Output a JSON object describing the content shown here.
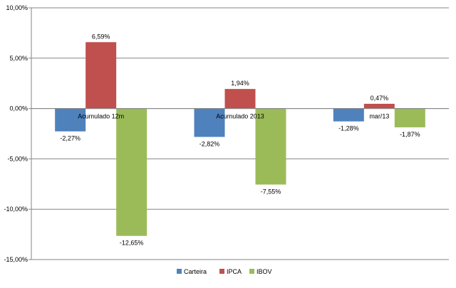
{
  "chart_data": {
    "type": "bar",
    "categories": [
      "Acumulado 12m",
      "Acumulado 2013",
      "mar/13"
    ],
    "series": [
      {
        "name": "Carteira",
        "values": [
          -2.27,
          -2.82,
          -1.28
        ],
        "labels": [
          "-2,27%",
          "-2,82%",
          "-1,28%"
        ],
        "color": "#4f81bd"
      },
      {
        "name": "IPCA",
        "values": [
          6.59,
          1.94,
          0.47
        ],
        "labels": [
          "6,59%",
          "1,94%",
          "0,47%"
        ],
        "color": "#c0504d"
      },
      {
        "name": "IBOV",
        "values": [
          -12.65,
          -7.55,
          -1.87
        ],
        "labels": [
          "-12,65%",
          "-7,55%",
          "-1,87%"
        ],
        "color": "#9bbb59"
      }
    ],
    "yticks": [
      10,
      5,
      0,
      -5,
      -10,
      -15
    ],
    "ytick_labels": [
      "10,00%",
      "5,00%",
      "0,00%",
      "-5,00%",
      "-10,00%",
      "-15,00%"
    ],
    "ylim": [
      -15,
      10
    ],
    "grid": true,
    "legend_position": "bottom",
    "title": "",
    "xlabel": "",
    "ylabel": ""
  }
}
